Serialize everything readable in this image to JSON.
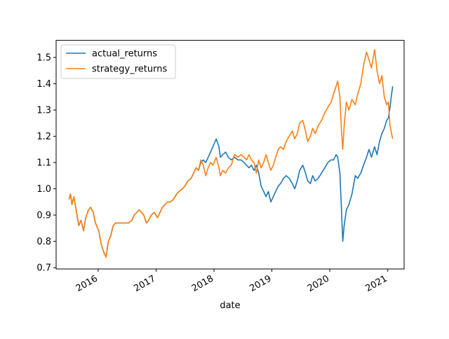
{
  "chart_data": {
    "type": "line",
    "title": "",
    "xlabel": "date",
    "ylabel": "",
    "xlim": [
      "2015-04-11",
      "2021-04-14"
    ],
    "ylim": [
      0.695,
      1.565
    ],
    "x_ticks": [
      {
        "date": "2016-01-01",
        "label": "2016"
      },
      {
        "date": "2017-01-01",
        "label": "2017"
      },
      {
        "date": "2018-01-01",
        "label": "2018"
      },
      {
        "date": "2019-01-01",
        "label": "2019"
      },
      {
        "date": "2020-01-01",
        "label": "2020"
      },
      {
        "date": "2021-01-01",
        "label": "2021"
      }
    ],
    "y_ticks": [
      0.7,
      0.8,
      0.9,
      1.0,
      1.1,
      1.2,
      1.3,
      1.4,
      1.5
    ],
    "y_tick_labels": [
      "0.7",
      "0.8",
      "0.9",
      "1.0",
      "1.1",
      "1.2",
      "1.3",
      "1.4",
      "1.5"
    ],
    "grid": false,
    "legend": {
      "position": "top-left"
    },
    "series": [
      {
        "name": "actual_returns",
        "color": "#1f77b4",
        "points": [
          [
            "2015-07-01",
            0.96
          ],
          [
            "2015-07-10",
            0.98
          ],
          [
            "2015-07-20",
            0.94
          ],
          [
            "2015-08-01",
            0.97
          ],
          [
            "2015-08-15",
            0.92
          ],
          [
            "2015-09-01",
            0.86
          ],
          [
            "2015-09-15",
            0.88
          ],
          [
            "2015-10-01",
            0.84
          ],
          [
            "2015-10-15",
            0.89
          ],
          [
            "2015-11-01",
            0.92
          ],
          [
            "2015-11-15",
            0.93
          ],
          [
            "2015-12-01",
            0.91
          ],
          [
            "2015-12-15",
            0.87
          ],
          [
            "2016-01-05",
            0.84
          ],
          [
            "2016-01-20",
            0.79
          ],
          [
            "2016-02-05",
            0.76
          ],
          [
            "2016-02-20",
            0.74
          ],
          [
            "2016-03-05",
            0.8
          ],
          [
            "2016-03-20",
            0.82
          ],
          [
            "2016-04-05",
            0.86
          ],
          [
            "2016-04-20",
            0.87
          ],
          [
            "2016-05-10",
            0.87
          ],
          [
            "2016-06-10",
            0.87
          ],
          [
            "2016-07-10",
            0.87
          ],
          [
            "2016-08-01",
            0.88
          ],
          [
            "2016-08-15",
            0.9
          ],
          [
            "2016-09-01",
            0.91
          ],
          [
            "2016-09-15",
            0.92
          ],
          [
            "2016-10-01",
            0.91
          ],
          [
            "2016-10-15",
            0.9
          ],
          [
            "2016-11-01",
            0.87
          ],
          [
            "2016-11-15",
            0.88
          ],
          [
            "2016-12-01",
            0.9
          ],
          [
            "2016-12-20",
            0.91
          ],
          [
            "2017-01-10",
            0.89
          ],
          [
            "2017-01-25",
            0.91
          ],
          [
            "2017-02-10",
            0.93
          ],
          [
            "2017-02-25",
            0.94
          ],
          [
            "2017-03-15",
            0.95
          ],
          [
            "2017-04-01",
            0.95
          ],
          [
            "2017-04-20",
            0.96
          ],
          [
            "2017-05-10",
            0.98
          ],
          [
            "2017-05-25",
            0.99
          ],
          [
            "2017-06-15",
            1.0
          ],
          [
            "2017-07-01",
            1.01
          ],
          [
            "2017-07-20",
            1.03
          ],
          [
            "2017-08-10",
            1.04
          ],
          [
            "2017-08-25",
            1.06
          ],
          [
            "2017-09-10",
            1.08
          ],
          [
            "2017-09-25",
            1.07
          ],
          [
            "2017-10-10",
            1.1
          ],
          [
            "2017-10-25",
            1.11
          ],
          [
            "2017-11-10",
            1.1
          ],
          [
            "2017-11-25",
            1.12
          ],
          [
            "2017-12-10",
            1.14
          ],
          [
            "2017-12-25",
            1.16
          ],
          [
            "2018-01-15",
            1.19
          ],
          [
            "2018-02-01",
            1.16
          ],
          [
            "2018-02-10",
            1.12
          ],
          [
            "2018-02-25",
            1.13
          ],
          [
            "2018-03-15",
            1.14
          ],
          [
            "2018-04-01",
            1.12
          ],
          [
            "2018-04-20",
            1.11
          ],
          [
            "2018-05-10",
            1.12
          ],
          [
            "2018-06-01",
            1.11
          ],
          [
            "2018-06-20",
            1.11
          ],
          [
            "2018-07-10",
            1.1
          ],
          [
            "2018-07-25",
            1.09
          ],
          [
            "2018-08-10",
            1.08
          ],
          [
            "2018-08-25",
            1.09
          ],
          [
            "2018-09-10",
            1.07
          ],
          [
            "2018-09-25",
            1.09
          ],
          [
            "2018-10-10",
            1.06
          ],
          [
            "2018-10-25",
            1.01
          ],
          [
            "2018-11-10",
            0.99
          ],
          [
            "2018-11-25",
            0.97
          ],
          [
            "2018-12-10",
            0.99
          ],
          [
            "2018-12-25",
            0.95
          ],
          [
            "2019-01-10",
            0.97
          ],
          [
            "2019-01-25",
            0.99
          ],
          [
            "2019-02-10",
            1.01
          ],
          [
            "2019-02-25",
            1.02
          ],
          [
            "2019-03-15",
            1.04
          ],
          [
            "2019-04-01",
            1.05
          ],
          [
            "2019-04-20",
            1.04
          ],
          [
            "2019-05-10",
            1.02
          ],
          [
            "2019-05-25",
            1.0
          ],
          [
            "2019-06-10",
            1.03
          ],
          [
            "2019-06-25",
            1.07
          ],
          [
            "2019-07-15",
            1.09
          ],
          [
            "2019-08-01",
            1.06
          ],
          [
            "2019-08-15",
            1.03
          ],
          [
            "2019-09-01",
            1.02
          ],
          [
            "2019-09-15",
            1.05
          ],
          [
            "2019-10-01",
            1.03
          ],
          [
            "2019-10-20",
            1.04
          ],
          [
            "2019-11-10",
            1.06
          ],
          [
            "2019-12-01",
            1.08
          ],
          [
            "2019-12-20",
            1.1
          ],
          [
            "2020-01-10",
            1.11
          ],
          [
            "2020-01-25",
            1.11
          ],
          [
            "2020-02-10",
            1.13
          ],
          [
            "2020-02-20",
            1.12
          ],
          [
            "2020-03-05",
            1.06
          ],
          [
            "2020-03-15",
            0.92
          ],
          [
            "2020-03-23",
            0.8
          ],
          [
            "2020-04-01",
            0.86
          ],
          [
            "2020-04-15",
            0.92
          ],
          [
            "2020-05-01",
            0.94
          ],
          [
            "2020-05-20",
            0.98
          ],
          [
            "2020-06-10",
            1.05
          ],
          [
            "2020-06-25",
            1.04
          ],
          [
            "2020-07-15",
            1.06
          ],
          [
            "2020-08-01",
            1.09
          ],
          [
            "2020-08-20",
            1.12
          ],
          [
            "2020-09-05",
            1.15
          ],
          [
            "2020-09-20",
            1.12
          ],
          [
            "2020-10-10",
            1.16
          ],
          [
            "2020-10-25",
            1.13
          ],
          [
            "2020-11-10",
            1.18
          ],
          [
            "2020-11-25",
            1.21
          ],
          [
            "2020-12-10",
            1.23
          ],
          [
            "2020-12-25",
            1.26
          ],
          [
            "2021-01-05",
            1.27
          ],
          [
            "2021-01-15",
            1.31
          ],
          [
            "2021-01-25",
            1.36
          ],
          [
            "2021-02-01",
            1.39
          ]
        ]
      },
      {
        "name": "strategy_returns",
        "color": "#ff7f0e",
        "points": [
          [
            "2015-07-01",
            0.96
          ],
          [
            "2015-07-10",
            0.98
          ],
          [
            "2015-07-20",
            0.94
          ],
          [
            "2015-08-01",
            0.97
          ],
          [
            "2015-08-15",
            0.92
          ],
          [
            "2015-09-01",
            0.86
          ],
          [
            "2015-09-15",
            0.88
          ],
          [
            "2015-10-01",
            0.84
          ],
          [
            "2015-10-15",
            0.89
          ],
          [
            "2015-11-01",
            0.92
          ],
          [
            "2015-11-15",
            0.93
          ],
          [
            "2015-12-01",
            0.91
          ],
          [
            "2015-12-15",
            0.87
          ],
          [
            "2016-01-05",
            0.84
          ],
          [
            "2016-01-20",
            0.79
          ],
          [
            "2016-02-05",
            0.76
          ],
          [
            "2016-02-20",
            0.74
          ],
          [
            "2016-03-05",
            0.8
          ],
          [
            "2016-03-20",
            0.82
          ],
          [
            "2016-04-05",
            0.86
          ],
          [
            "2016-04-20",
            0.87
          ],
          [
            "2016-05-10",
            0.87
          ],
          [
            "2016-06-10",
            0.87
          ],
          [
            "2016-07-10",
            0.87
          ],
          [
            "2016-08-01",
            0.88
          ],
          [
            "2016-08-15",
            0.9
          ],
          [
            "2016-09-01",
            0.91
          ],
          [
            "2016-09-15",
            0.92
          ],
          [
            "2016-10-01",
            0.91
          ],
          [
            "2016-10-15",
            0.9
          ],
          [
            "2016-11-01",
            0.87
          ],
          [
            "2016-11-15",
            0.88
          ],
          [
            "2016-12-01",
            0.9
          ],
          [
            "2016-12-20",
            0.91
          ],
          [
            "2017-01-10",
            0.89
          ],
          [
            "2017-01-25",
            0.91
          ],
          [
            "2017-02-10",
            0.93
          ],
          [
            "2017-02-25",
            0.94
          ],
          [
            "2017-03-15",
            0.95
          ],
          [
            "2017-04-01",
            0.95
          ],
          [
            "2017-04-20",
            0.96
          ],
          [
            "2017-05-10",
            0.98
          ],
          [
            "2017-05-25",
            0.99
          ],
          [
            "2017-06-15",
            1.0
          ],
          [
            "2017-07-01",
            1.01
          ],
          [
            "2017-07-20",
            1.03
          ],
          [
            "2017-08-10",
            1.04
          ],
          [
            "2017-08-25",
            1.06
          ],
          [
            "2017-09-10",
            1.08
          ],
          [
            "2017-09-25",
            1.07
          ],
          [
            "2017-10-10",
            1.11
          ],
          [
            "2017-10-25",
            1.09
          ],
          [
            "2017-11-10",
            1.05
          ],
          [
            "2017-11-25",
            1.08
          ],
          [
            "2017-12-10",
            1.1
          ],
          [
            "2017-12-25",
            1.09
          ],
          [
            "2018-01-15",
            1.12
          ],
          [
            "2018-02-01",
            1.08
          ],
          [
            "2018-02-10",
            1.05
          ],
          [
            "2018-02-25",
            1.07
          ],
          [
            "2018-03-15",
            1.06
          ],
          [
            "2018-04-01",
            1.08
          ],
          [
            "2018-04-20",
            1.09
          ],
          [
            "2018-05-10",
            1.13
          ],
          [
            "2018-06-01",
            1.12
          ],
          [
            "2018-06-20",
            1.13
          ],
          [
            "2018-07-10",
            1.12
          ],
          [
            "2018-07-25",
            1.11
          ],
          [
            "2018-08-10",
            1.13
          ],
          [
            "2018-08-25",
            1.11
          ],
          [
            "2018-09-10",
            1.1
          ],
          [
            "2018-09-25",
            1.06
          ],
          [
            "2018-10-10",
            1.11
          ],
          [
            "2018-10-25",
            1.08
          ],
          [
            "2018-11-10",
            1.1
          ],
          [
            "2018-11-25",
            1.13
          ],
          [
            "2018-12-10",
            1.1
          ],
          [
            "2018-12-25",
            1.07
          ],
          [
            "2019-01-10",
            1.09
          ],
          [
            "2019-01-25",
            1.12
          ],
          [
            "2019-02-10",
            1.15
          ],
          [
            "2019-02-25",
            1.16
          ],
          [
            "2019-03-15",
            1.15
          ],
          [
            "2019-04-01",
            1.18
          ],
          [
            "2019-04-20",
            1.2
          ],
          [
            "2019-05-10",
            1.22
          ],
          [
            "2019-05-25",
            1.19
          ],
          [
            "2019-06-10",
            1.21
          ],
          [
            "2019-06-25",
            1.25
          ],
          [
            "2019-07-15",
            1.26
          ],
          [
            "2019-08-01",
            1.22
          ],
          [
            "2019-08-15",
            1.18
          ],
          [
            "2019-09-01",
            1.2
          ],
          [
            "2019-09-15",
            1.23
          ],
          [
            "2019-10-01",
            1.21
          ],
          [
            "2019-10-20",
            1.24
          ],
          [
            "2019-11-10",
            1.26
          ],
          [
            "2019-12-01",
            1.29
          ],
          [
            "2019-12-20",
            1.31
          ],
          [
            "2020-01-10",
            1.33
          ],
          [
            "2020-01-25",
            1.36
          ],
          [
            "2020-02-10",
            1.39
          ],
          [
            "2020-02-20",
            1.41
          ],
          [
            "2020-03-05",
            1.35
          ],
          [
            "2020-03-15",
            1.22
          ],
          [
            "2020-03-23",
            1.15
          ],
          [
            "2020-04-01",
            1.24
          ],
          [
            "2020-04-15",
            1.33
          ],
          [
            "2020-05-01",
            1.3
          ],
          [
            "2020-05-20",
            1.34
          ],
          [
            "2020-06-10",
            1.32
          ],
          [
            "2020-06-25",
            1.36
          ],
          [
            "2020-07-15",
            1.4
          ],
          [
            "2020-08-01",
            1.47
          ],
          [
            "2020-08-20",
            1.52
          ],
          [
            "2020-09-05",
            1.49
          ],
          [
            "2020-09-20",
            1.46
          ],
          [
            "2020-10-10",
            1.53
          ],
          [
            "2020-10-25",
            1.45
          ],
          [
            "2020-11-10",
            1.4
          ],
          [
            "2020-11-25",
            1.43
          ],
          [
            "2020-12-10",
            1.35
          ],
          [
            "2020-12-25",
            1.32
          ],
          [
            "2021-01-05",
            1.33
          ],
          [
            "2021-01-15",
            1.24
          ],
          [
            "2021-01-25",
            1.21
          ],
          [
            "2021-02-01",
            1.19
          ]
        ]
      }
    ]
  }
}
